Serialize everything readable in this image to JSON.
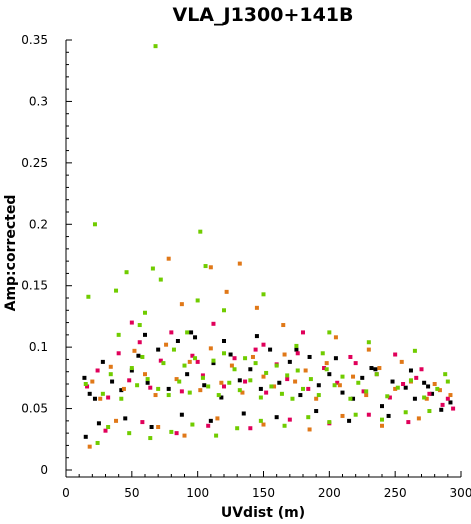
{
  "chart_data": {
    "type": "scatter",
    "title": "VLA_J1300+141B",
    "xlabel": "UVdist (m)",
    "ylabel": "Amp:corrected",
    "xlim": [
      0,
      300
    ],
    "ylim": [
      0,
      0.35
    ],
    "xticks": [
      0,
      50,
      100,
      150,
      200,
      250,
      300
    ],
    "yticks": [
      0,
      0.05,
      0.1,
      0.15,
      0.2,
      0.25,
      0.3,
      0.35
    ],
    "xtick_labels": [
      "0",
      "50",
      "100",
      "150",
      "200",
      "250",
      "300"
    ],
    "ytick_labels": [
      "0",
      "0.05",
      "0.1",
      "0.15",
      "0.2",
      "0.25",
      "0.3",
      "0.35"
    ],
    "grid": false,
    "legend": "none",
    "series": [
      {
        "color": "#000000",
        "points": [
          [
            14,
            0.075
          ],
          [
            18,
            0.062
          ],
          [
            22,
            0.058
          ],
          [
            28,
            0.088
          ],
          [
            35,
            0.072
          ],
          [
            42,
            0.065
          ],
          [
            50,
            0.081
          ],
          [
            55,
            0.093
          ],
          [
            62,
            0.071
          ],
          [
            70,
            0.098
          ],
          [
            78,
            0.066
          ],
          [
            85,
            0.105
          ],
          [
            92,
            0.078
          ],
          [
            98,
            0.108
          ],
          [
            105,
            0.069
          ],
          [
            112,
            0.087
          ],
          [
            118,
            0.059
          ],
          [
            125,
            0.094
          ],
          [
            132,
            0.073
          ],
          [
            140,
            0.082
          ],
          [
            148,
            0.066
          ],
          [
            155,
            0.098
          ],
          [
            162,
            0.071
          ],
          [
            170,
            0.088
          ],
          [
            178,
            0.061
          ],
          [
            185,
            0.092
          ],
          [
            192,
            0.069
          ],
          [
            200,
            0.078
          ],
          [
            210,
            0.063
          ],
          [
            218,
            0.058
          ],
          [
            225,
            0.075
          ],
          [
            232,
            0.083
          ],
          [
            240,
            0.052
          ],
          [
            248,
            0.072
          ],
          [
            258,
            0.067
          ],
          [
            265,
            0.058
          ],
          [
            272,
            0.071
          ],
          [
            278,
            0.062
          ],
          [
            285,
            0.049
          ],
          [
            292,
            0.055
          ],
          [
            25,
            0.038
          ],
          [
            45,
            0.042
          ],
          [
            65,
            0.035
          ],
          [
            88,
            0.045
          ],
          [
            110,
            0.04
          ],
          [
            135,
            0.046
          ],
          [
            160,
            0.043
          ],
          [
            190,
            0.048
          ],
          [
            215,
            0.04
          ],
          [
            245,
            0.044
          ],
          [
            15,
            0.027
          ],
          [
            60,
            0.11
          ],
          [
            95,
            0.112
          ],
          [
            120,
            0.105
          ],
          [
            145,
            0.109
          ],
          [
            175,
            0.098
          ],
          [
            205,
            0.091
          ],
          [
            235,
            0.082
          ],
          [
            262,
            0.081
          ],
          [
            275,
            0.068
          ]
        ]
      },
      {
        "color": "#e0005a",
        "points": [
          [
            16,
            0.068
          ],
          [
            24,
            0.081
          ],
          [
            32,
            0.059
          ],
          [
            40,
            0.095
          ],
          [
            48,
            0.073
          ],
          [
            56,
            0.104
          ],
          [
            64,
            0.067
          ],
          [
            72,
            0.089
          ],
          [
            80,
            0.112
          ],
          [
            88,
            0.064
          ],
          [
            96,
            0.093
          ],
          [
            104,
            0.077
          ],
          [
            112,
            0.119
          ],
          [
            120,
            0.068
          ],
          [
            128,
            0.091
          ],
          [
            136,
            0.072
          ],
          [
            144,
            0.098
          ],
          [
            152,
            0.063
          ],
          [
            160,
            0.086
          ],
          [
            168,
            0.074
          ],
          [
            176,
            0.095
          ],
          [
            184,
            0.066
          ],
          [
            196,
            0.083
          ],
          [
            206,
            0.071
          ],
          [
            216,
            0.092
          ],
          [
            226,
            0.064
          ],
          [
            236,
            0.078
          ],
          [
            246,
            0.059
          ],
          [
            256,
            0.07
          ],
          [
            266,
            0.075
          ],
          [
            276,
            0.062
          ],
          [
            286,
            0.053
          ],
          [
            294,
            0.05
          ],
          [
            30,
            0.032
          ],
          [
            58,
            0.039
          ],
          [
            84,
            0.03
          ],
          [
            108,
            0.036
          ],
          [
            140,
            0.034
          ],
          [
            170,
            0.041
          ],
          [
            200,
            0.038
          ],
          [
            230,
            0.045
          ],
          [
            260,
            0.039
          ],
          [
            290,
            0.058
          ],
          [
            50,
            0.12
          ],
          [
            100,
            0.088
          ],
          [
            150,
            0.102
          ],
          [
            180,
            0.112
          ],
          [
            220,
            0.087
          ],
          [
            250,
            0.094
          ],
          [
            270,
            0.082
          ]
        ]
      },
      {
        "color": "#e07818",
        "points": [
          [
            20,
            0.072
          ],
          [
            26,
            0.058
          ],
          [
            34,
            0.084
          ],
          [
            44,
            0.066
          ],
          [
            52,
            0.097
          ],
          [
            60,
            0.078
          ],
          [
            68,
            0.061
          ],
          [
            76,
            0.102
          ],
          [
            84,
            0.074
          ],
          [
            94,
            0.088
          ],
          [
            102,
            0.065
          ],
          [
            110,
            0.099
          ],
          [
            118,
            0.071
          ],
          [
            126,
            0.085
          ],
          [
            134,
            0.063
          ],
          [
            142,
            0.092
          ],
          [
            150,
            0.076
          ],
          [
            158,
            0.068
          ],
          [
            166,
            0.094
          ],
          [
            174,
            0.072
          ],
          [
            182,
            0.081
          ],
          [
            190,
            0.058
          ],
          [
            198,
            0.087
          ],
          [
            208,
            0.069
          ],
          [
            218,
            0.076
          ],
          [
            228,
            0.061
          ],
          [
            238,
            0.083
          ],
          [
            250,
            0.066
          ],
          [
            262,
            0.072
          ],
          [
            274,
            0.058
          ],
          [
            284,
            0.065
          ],
          [
            292,
            0.061
          ],
          [
            38,
            0.04
          ],
          [
            70,
            0.035
          ],
          [
            90,
            0.028
          ],
          [
            115,
            0.042
          ],
          [
            150,
            0.037
          ],
          [
            185,
            0.033
          ],
          [
            210,
            0.044
          ],
          [
            240,
            0.036
          ],
          [
            268,
            0.042
          ],
          [
            18,
            0.019
          ],
          [
            78,
            0.172
          ],
          [
            110,
            0.165
          ],
          [
            132,
            0.168
          ],
          [
            145,
            0.132
          ],
          [
            88,
            0.135
          ],
          [
            122,
            0.145
          ],
          [
            165,
            0.118
          ],
          [
            205,
            0.108
          ],
          [
            230,
            0.098
          ],
          [
            255,
            0.088
          ],
          [
            280,
            0.07
          ]
        ]
      },
      {
        "color": "#70cc00",
        "points": [
          [
            15,
            0.07
          ],
          [
            17,
            0.141
          ],
          [
            22,
            0.2
          ],
          [
            28,
            0.062
          ],
          [
            34,
            0.078
          ],
          [
            38,
            0.146
          ],
          [
            42,
            0.058
          ],
          [
            46,
            0.161
          ],
          [
            50,
            0.083
          ],
          [
            54,
            0.069
          ],
          [
            58,
            0.092
          ],
          [
            62,
            0.074
          ],
          [
            66,
            0.164
          ],
          [
            68,
            0.345
          ],
          [
            70,
            0.066
          ],
          [
            72,
            0.155
          ],
          [
            74,
            0.087
          ],
          [
            78,
            0.061
          ],
          [
            82,
            0.098
          ],
          [
            86,
            0.072
          ],
          [
            90,
            0.085
          ],
          [
            94,
            0.063
          ],
          [
            98,
            0.091
          ],
          [
            102,
            0.194
          ],
          [
            104,
            0.075
          ],
          [
            106,
            0.166
          ],
          [
            108,
            0.068
          ],
          [
            112,
            0.089
          ],
          [
            116,
            0.061
          ],
          [
            120,
            0.095
          ],
          [
            124,
            0.071
          ],
          [
            128,
            0.082
          ],
          [
            132,
            0.065
          ],
          [
            136,
            0.091
          ],
          [
            140,
            0.073
          ],
          [
            144,
            0.087
          ],
          [
            148,
            0.059
          ],
          [
            152,
            0.079
          ],
          [
            156,
            0.068
          ],
          [
            160,
            0.085
          ],
          [
            164,
            0.062
          ],
          [
            168,
            0.077
          ],
          [
            172,
            0.058
          ],
          [
            176,
            0.081
          ],
          [
            180,
            0.066
          ],
          [
            186,
            0.074
          ],
          [
            192,
            0.061
          ],
          [
            198,
            0.082
          ],
          [
            204,
            0.069
          ],
          [
            210,
            0.076
          ],
          [
            216,
            0.058
          ],
          [
            222,
            0.071
          ],
          [
            228,
            0.064
          ],
          [
            236,
            0.078
          ],
          [
            244,
            0.06
          ],
          [
            252,
            0.067
          ],
          [
            262,
            0.073
          ],
          [
            272,
            0.059
          ],
          [
            282,
            0.066
          ],
          [
            290,
            0.072
          ],
          [
            24,
            0.022
          ],
          [
            32,
            0.035
          ],
          [
            48,
            0.03
          ],
          [
            64,
            0.026
          ],
          [
            80,
            0.031
          ],
          [
            96,
            0.037
          ],
          [
            114,
            0.028
          ],
          [
            130,
            0.034
          ],
          [
            148,
            0.04
          ],
          [
            166,
            0.036
          ],
          [
            184,
            0.043
          ],
          [
            200,
            0.039
          ],
          [
            220,
            0.045
          ],
          [
            240,
            0.041
          ],
          [
            258,
            0.047
          ],
          [
            276,
            0.048
          ],
          [
            150,
            0.143
          ],
          [
            100,
            0.138
          ],
          [
            60,
            0.128
          ],
          [
            120,
            0.13
          ],
          [
            40,
            0.11
          ],
          [
            200,
            0.112
          ],
          [
            230,
            0.104
          ],
          [
            265,
            0.097
          ],
          [
            288,
            0.078
          ],
          [
            195,
            0.095
          ],
          [
            175,
            0.101
          ],
          [
            92,
            0.112
          ],
          [
            56,
            0.118
          ]
        ]
      }
    ]
  }
}
